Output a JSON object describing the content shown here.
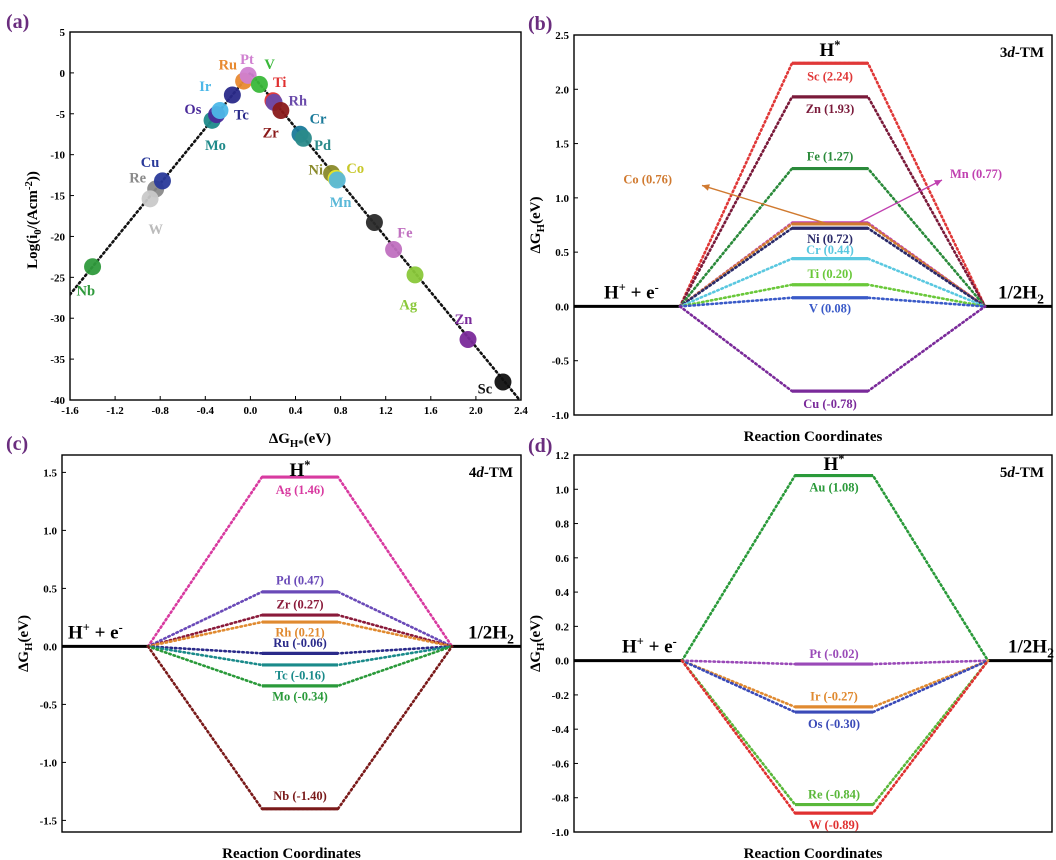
{
  "panels": {
    "a": {
      "label": "(a)"
    },
    "b": {
      "label": "(b)"
    },
    "c": {
      "label": "(c)"
    },
    "d": {
      "label": "(d)"
    }
  },
  "chart_data": [
    {
      "id": "a",
      "type": "scatter",
      "xlabel": "ΔG_H*(eV)",
      "ylabel": "Log(i0/(Acm-2))",
      "xlim": [
        -1.6,
        2.4
      ],
      "ylim": [
        -40,
        5
      ],
      "xticks": [
        -1.6,
        -1.2,
        -0.8,
        -0.4,
        0.0,
        0.4,
        0.8,
        1.2,
        1.6,
        2.0,
        2.4
      ],
      "yticks": [
        5,
        0,
        -5,
        -10,
        -15,
        -20,
        -25,
        -30,
        -35,
        -40
      ],
      "xtick_labels": [
        "-1.6",
        "-1.2",
        "-0.8",
        "-0.4",
        "0.0",
        "0.4",
        "0.8",
        "1.2",
        "1.6",
        "2.0",
        "2.4"
      ],
      "ytick_labels": [
        "5",
        "0",
        "-5",
        "-10",
        "-15",
        "-20",
        "-25",
        "-30",
        "-35",
        "-40"
      ],
      "volcano_line": {
        "apex": [
          0.0,
          0.0
        ],
        "left_end": [
          -1.6,
          -27.1
        ],
        "right_end": [
          2.4,
          -40.2
        ]
      },
      "points": [
        {
          "name": "Nb",
          "x": -1.4,
          "y": -23.7,
          "color": "#2f9a3c",
          "lx": -1.46,
          "ly": -26.6,
          "lc": "#2f9a3c"
        },
        {
          "name": "Re",
          "x": -0.84,
          "y": -14.2,
          "color": "#8a8a8a",
          "lx": -1.0,
          "ly": -12.8,
          "lc": "#8a8a8a"
        },
        {
          "name": "W",
          "x": -0.89,
          "y": -15.4,
          "color": "#c9c9c9",
          "lx": -0.84,
          "ly": -19.1,
          "lc": "#bbbbbb"
        },
        {
          "name": "Cu",
          "x": -0.78,
          "y": -13.2,
          "color": "#2a3a9a",
          "lx": -0.89,
          "ly": -10.9,
          "lc": "#2a3a9a"
        },
        {
          "name": "Mo",
          "x": -0.34,
          "y": -5.8,
          "color": "#1f8a8a",
          "lx": -0.31,
          "ly": -8.8,
          "lc": "#1f8a8a"
        },
        {
          "name": "Os",
          "x": -0.3,
          "y": -5.1,
          "color": "#4a2a9a",
          "lx": -0.51,
          "ly": -4.4,
          "lc": "#4a2a9a"
        },
        {
          "name": "Ir",
          "x": -0.27,
          "y": -4.6,
          "color": "#4db8e8",
          "lx": -0.4,
          "ly": -1.6,
          "lc": "#4db8e8"
        },
        {
          "name": "Tc",
          "x": -0.16,
          "y": -2.7,
          "color": "#2a2a8a",
          "lx": -0.08,
          "ly": -5.1,
          "lc": "#2a2a8a"
        },
        {
          "name": "Ru",
          "x": -0.06,
          "y": -1.0,
          "color": "#e88a30",
          "lx": -0.2,
          "ly": 1.0,
          "lc": "#e88a30"
        },
        {
          "name": "Pt",
          "x": -0.02,
          "y": -0.3,
          "color": "#d080d0",
          "lx": -0.03,
          "ly": 1.7,
          "lc": "#d080d0"
        },
        {
          "name": "V",
          "x": 0.08,
          "y": -1.4,
          "color": "#3ab83a",
          "lx": 0.17,
          "ly": 1.1,
          "lc": "#3ab83a"
        },
        {
          "name": "Ti",
          "x": 0.2,
          "y": -3.4,
          "color": "#e03030",
          "lx": 0.26,
          "ly": -1.1,
          "lc": "#e03030"
        },
        {
          "name": "Rh",
          "x": 0.21,
          "y": -3.6,
          "color": "#6a4aaa",
          "lx": 0.42,
          "ly": -3.4,
          "lc": "#6a4aaa"
        },
        {
          "name": "Zr",
          "x": 0.27,
          "y": -4.6,
          "color": "#8a1a1a",
          "lx": 0.18,
          "ly": -7.3,
          "lc": "#8a1a1a"
        },
        {
          "name": "Cr",
          "x": 0.44,
          "y": -7.5,
          "color": "#1a7a9a",
          "lx": 0.6,
          "ly": -5.6,
          "lc": "#1a7a9a"
        },
        {
          "name": "Pd",
          "x": 0.47,
          "y": -8.0,
          "color": "#2a8a8a",
          "lx": 0.64,
          "ly": -8.8,
          "lc": "#2a8a8a"
        },
        {
          "name": "Ni",
          "x": 0.72,
          "y": -12.3,
          "color": "#8a8a2a",
          "lx": 0.58,
          "ly": -11.8,
          "lc": "#8a8a2a"
        },
        {
          "name": "Co",
          "x": 0.76,
          "y": -12.9,
          "color": "#e8e82a",
          "lx": 0.93,
          "ly": -11.6,
          "lc": "#c8c82a"
        },
        {
          "name": "Mn",
          "x": 0.77,
          "y": -13.1,
          "color": "#5ab8d8",
          "lx": 0.8,
          "ly": -15.8,
          "lc": "#5ab8d8"
        },
        {
          "name": "",
          "x": 1.1,
          "y": -18.3,
          "color": "#2a2a2a"
        },
        {
          "name": "Fe",
          "x": 1.27,
          "y": -21.6,
          "color": "#c070c0",
          "lx": 1.37,
          "ly": -19.5,
          "lc": "#c070c0"
        },
        {
          "name": "Ag",
          "x": 1.46,
          "y": -24.7,
          "color": "#8ac83a",
          "lx": 1.4,
          "ly": -28.3,
          "lc": "#8ac83a"
        },
        {
          "name": "Zn",
          "x": 1.93,
          "y": -32.6,
          "color": "#7a2a9a",
          "lx": 1.89,
          "ly": -30.1,
          "lc": "#7a2a9a"
        },
        {
          "name": "Sc",
          "x": 2.24,
          "y": -37.8,
          "color": "#111111",
          "lx": 2.08,
          "ly": -38.6,
          "lc": "#111111"
        }
      ]
    },
    {
      "id": "b",
      "type": "line",
      "title": "3d-TM",
      "ylabel": "ΔGH(eV)",
      "xlabel": "Reaction Coordinates",
      "ylim": [
        -1.0,
        2.5
      ],
      "yticks": [
        -1.0,
        -0.5,
        0.0,
        0.5,
        1.0,
        1.5,
        2.0,
        2.5
      ],
      "ytick_labels": [
        "-1.0",
        "-0.5",
        "0.0",
        "0.5",
        "1.0",
        "1.5",
        "2.0",
        "2.5"
      ],
      "left_state": "H+ + e-",
      "right_state": "1/2H2",
      "top_state": "H*",
      "series": [
        {
          "name": "Sc (2.24)",
          "value": 2.24,
          "color": "#e03838",
          "label_value": 2.12
        },
        {
          "name": "Zn (1.93)",
          "value": 1.93,
          "color": "#7a1a3a",
          "label_value": 1.82
        },
        {
          "name": "Fe (1.27)",
          "value": 1.27,
          "color": "#2a8a3a",
          "label_value": 1.38
        },
        {
          "name": "Mn (0.77)",
          "value": 0.77,
          "color": "#c040b0",
          "callout": true,
          "callout_text_x": 950,
          "callout_text_value": 1.22
        },
        {
          "name": "Co (0.76)",
          "value": 0.76,
          "color": "#d07a30",
          "callout": true,
          "callout_text_x": 672,
          "callout_text_value": 1.17
        },
        {
          "name": "Ni (0.72)",
          "value": 0.72,
          "color": "#2a2a6a",
          "label_value": 0.62
        },
        {
          "name": "Cr (0.44)",
          "value": 0.44,
          "color": "#5ac8e0",
          "label_value": 0.52
        },
        {
          "name": "Ti (0.20)",
          "value": 0.2,
          "color": "#6ac83a",
          "label_value": 0.3
        },
        {
          "name": "V (0.08)",
          "value": 0.08,
          "color": "#3a5ac8",
          "label_value": -0.02
        },
        {
          "name": "Cu (-0.78)",
          "value": -0.78,
          "color": "#7a2a9a",
          "label_value": -0.9
        }
      ]
    },
    {
      "id": "c",
      "type": "line",
      "title": "4d-TM",
      "ylabel": "ΔGH(eV)",
      "xlabel": "Reaction Coordinates",
      "ylim": [
        -1.6,
        1.65
      ],
      "yticks": [
        -1.5,
        -1.0,
        -0.5,
        0.0,
        0.5,
        1.0,
        1.5
      ],
      "ytick_labels": [
        "-1.5",
        "-1.0",
        "-0.5",
        "0.0",
        "0.5",
        "1.0",
        "1.5"
      ],
      "left_state": "H+ + e-",
      "right_state": "1/2H2",
      "top_state": "H*",
      "series": [
        {
          "name": "Ag (1.46)",
          "value": 1.46,
          "color": "#d83aa0",
          "label_value": 1.35
        },
        {
          "name": "Pd (0.47)",
          "value": 0.47,
          "color": "#6a4ab8",
          "label_value": 0.57
        },
        {
          "name": "Zr (0.27)",
          "value": 0.27,
          "color": "#8a1a3a",
          "label_value": 0.36
        },
        {
          "name": "Rh (0.21)",
          "value": 0.21,
          "color": "#e08a30",
          "label_value": 0.12
        },
        {
          "name": "Ru (-0.06)",
          "value": -0.06,
          "color": "#2a2a8a",
          "label_value": 0.03
        },
        {
          "name": "Tc (-0.16)",
          "value": -0.16,
          "color": "#1a8a8a",
          "label_value": -0.25
        },
        {
          "name": "Mo (-0.34)",
          "value": -0.34,
          "color": "#2a9a3a",
          "label_value": -0.43
        },
        {
          "name": "Nb (-1.40)",
          "value": -1.4,
          "color": "#7a1a1a",
          "label_value": -1.29
        }
      ]
    },
    {
      "id": "d",
      "type": "line",
      "title": "5d-TM",
      "ylabel": "ΔGH(eV)",
      "xlabel": "Reaction Coordinates",
      "ylim": [
        -1.0,
        1.2
      ],
      "yticks": [
        -1.0,
        -0.8,
        -0.6,
        -0.4,
        -0.2,
        0.0,
        0.2,
        0.4,
        0.6,
        0.8,
        1.0,
        1.2
      ],
      "ytick_labels": [
        "-1.0",
        "-0.8",
        "-0.6",
        "-0.4",
        "-0.2",
        "0.0",
        "0.2",
        "0.4",
        "0.6",
        "0.8",
        "1.0",
        "1.2"
      ],
      "left_state": "H+ + e-",
      "right_state": "1/2H2",
      "top_state": "H*",
      "series": [
        {
          "name": "Au (1.08)",
          "value": 1.08,
          "color": "#2a9a3a",
          "label_value": 1.01
        },
        {
          "name": "Pt (-0.02)",
          "value": -0.02,
          "color": "#9a4ab8",
          "label_value": 0.04
        },
        {
          "name": "Ir (-0.27)",
          "value": -0.27,
          "color": "#e08a30",
          "label_value": -0.21
        },
        {
          "name": "Os (-0.30)",
          "value": -0.3,
          "color": "#3a4ab8",
          "label_value": -0.37
        },
        {
          "name": "Re (-0.84)",
          "value": -0.84,
          "color": "#5ab83a",
          "label_value": -0.78
        },
        {
          "name": "W (-0.89)",
          "value": -0.89,
          "color": "#e03030",
          "label_value": -0.96
        }
      ]
    }
  ]
}
